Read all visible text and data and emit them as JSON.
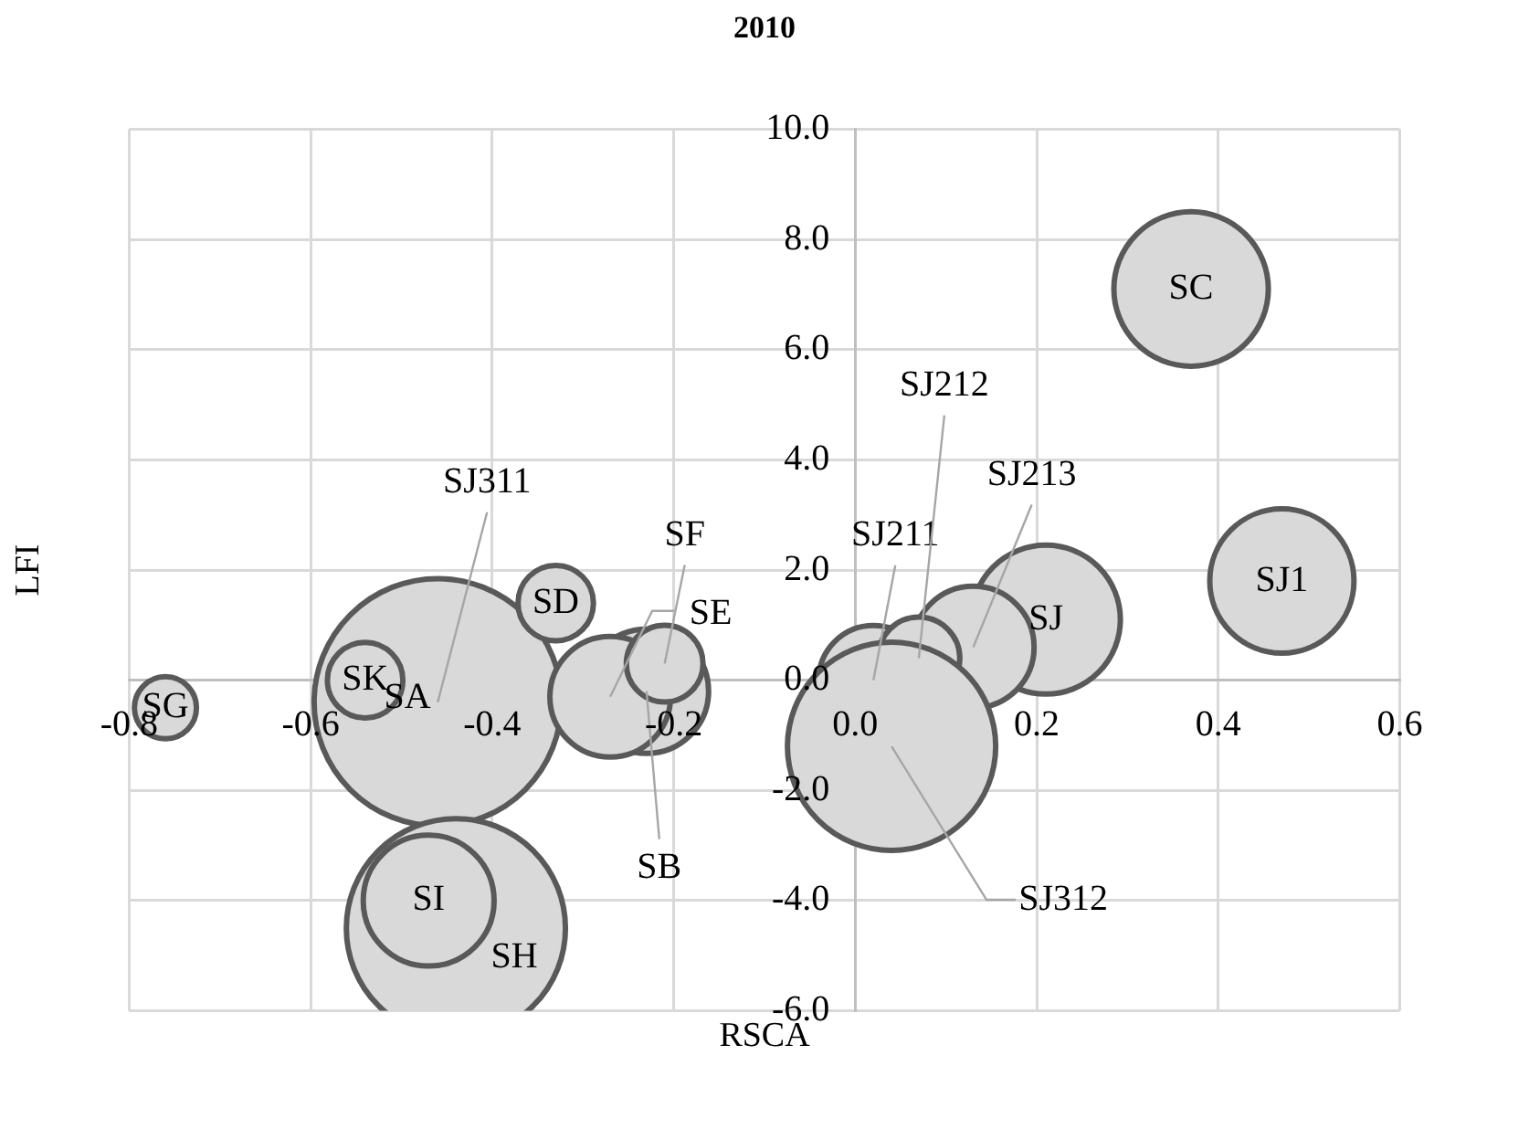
{
  "chart_data": {
    "type": "bubble",
    "title": "2010",
    "xlabel": "RSCA",
    "ylabel": "LFI",
    "xlim": [
      -0.8,
      0.6
    ],
    "xticks": [
      {
        "value": -0.8,
        "label": "-0.8"
      },
      {
        "value": -0.6,
        "label": "-0.6"
      },
      {
        "value": -0.4,
        "label": "-0.4"
      },
      {
        "value": -0.2,
        "label": "-0.2"
      },
      {
        "value": 0,
        "label": "0.0"
      },
      {
        "value": 0.2,
        "label": "0.2"
      },
      {
        "value": 0.4,
        "label": "0.4"
      },
      {
        "value": 0.6,
        "label": "0.6"
      }
    ],
    "ylim": [
      -6,
      10
    ],
    "yticks": [
      {
        "value": -6,
        "label": "-6.0"
      },
      {
        "value": -4,
        "label": "-4.0"
      },
      {
        "value": -2,
        "label": "-2.0"
      },
      {
        "value": 0,
        "label": "0.0"
      },
      {
        "value": 2,
        "label": "2.0"
      },
      {
        "value": 4,
        "label": "4.0"
      },
      {
        "value": 6,
        "label": "6.0"
      },
      {
        "value": 8,
        "label": "8.0"
      },
      {
        "value": 10,
        "label": "10.0"
      }
    ],
    "grid": true,
    "annotations": [
      "SA"
    ],
    "series": [
      {
        "name": "SJ311",
        "color": "#d9d9d9",
        "x": [
          -0.46
        ],
        "values": [
          -0.4
        ],
        "sizes": [
          1
        ]
      },
      {
        "name": "SK",
        "color": "#d9d9d9",
        "x": [
          -0.54
        ],
        "values": [
          0.0
        ],
        "sizes": [
          0.093
        ]
      },
      {
        "name": "SG",
        "color": "#d9d9d9",
        "x": [
          -0.76
        ],
        "values": [
          -0.5
        ],
        "sizes": [
          0.063
        ]
      },
      {
        "name": "SD",
        "color": "#d9d9d9",
        "x": [
          -0.33
        ],
        "values": [
          1.4
        ],
        "sizes": [
          0.093
        ]
      },
      {
        "name": "SB",
        "color": "#d9d9d9",
        "x": [
          -0.23
        ],
        "values": [
          -0.2
        ],
        "sizes": [
          0.252
        ]
      },
      {
        "name": "SE",
        "color": "#d9d9d9",
        "x": [
          -0.27
        ],
        "values": [
          -0.3
        ],
        "sizes": [
          0.238
        ]
      },
      {
        "name": "SF",
        "color": "#d9d9d9",
        "x": [
          -0.21
        ],
        "values": [
          0.3
        ],
        "sizes": [
          0.096
        ]
      },
      {
        "name": "SH",
        "color": "#d9d9d9",
        "x": [
          -0.44
        ],
        "values": [
          -4.5
        ],
        "sizes": [
          0.785
        ]
      },
      {
        "name": "SI",
        "color": "#d9d9d9",
        "x": [
          -0.47
        ],
        "values": [
          -4.0
        ],
        "sizes": [
          0.28
        ]
      },
      {
        "name": "SC",
        "color": "#d9d9d9",
        "x": [
          0.37
        ],
        "values": [
          7.1
        ],
        "sizes": [
          0.39
        ]
      },
      {
        "name": "SJ1",
        "color": "#d9d9d9",
        "x": [
          0.47
        ],
        "values": [
          1.8
        ],
        "sizes": [
          0.34
        ]
      },
      {
        "name": "SJ",
        "color": "#d9d9d9",
        "x": [
          0.21
        ],
        "values": [
          1.1
        ],
        "sizes": [
          0.363
        ]
      },
      {
        "name": "SJ211",
        "color": "#d9d9d9",
        "x": [
          0.02
        ],
        "values": [
          0.0
        ],
        "sizes": [
          0.196
        ]
      },
      {
        "name": "SJ213",
        "color": "#d9d9d9",
        "x": [
          0.13
        ],
        "values": [
          0.6
        ],
        "sizes": [
          0.242
        ]
      },
      {
        "name": "SJ212",
        "color": "#d9d9d9",
        "x": [
          0.07
        ],
        "values": [
          0.4
        ],
        "sizes": [
          0.11
        ]
      },
      {
        "name": "SJ312",
        "color": "#d9d9d9",
        "x": [
          0.04
        ],
        "values": [
          -1.2
        ],
        "sizes": [
          0.709
        ]
      }
    ]
  }
}
